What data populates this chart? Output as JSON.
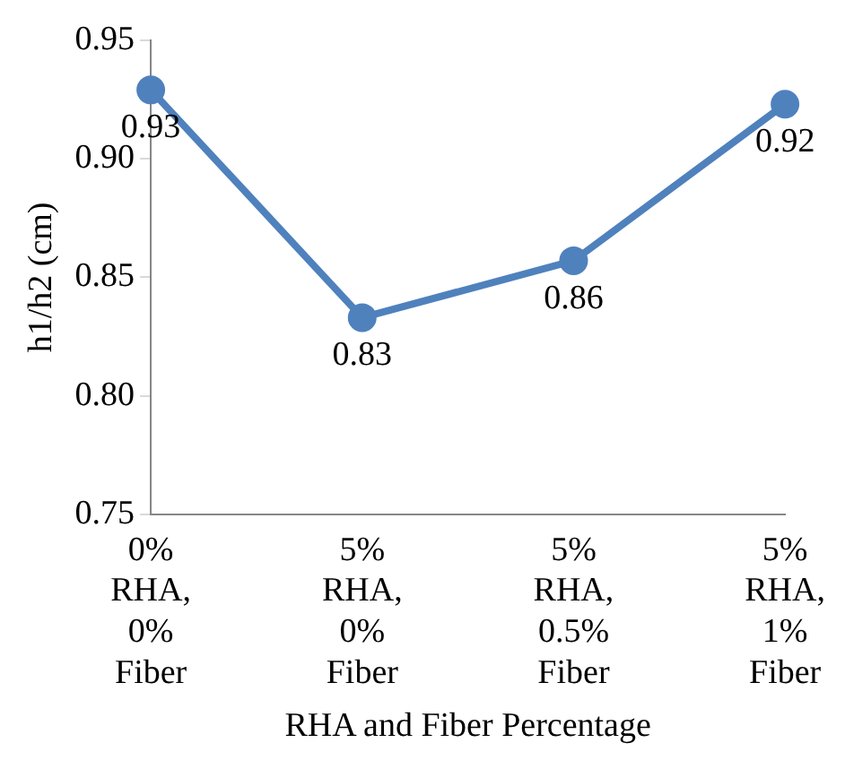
{
  "chart_data": {
    "type": "line",
    "xlabel": "RHA and Fiber Percentage",
    "ylabel": "h1/h2 (cm)",
    "categories": [
      "0% RHA, 0% Fiber",
      "5% RHA, 0% Fiber",
      "5% RHA, 0.5% Fiber",
      "5% RHA, 1% Fiber"
    ],
    "series": [
      {
        "color": "#4f81bd",
        "values": [
          0.929,
          0.833,
          0.857,
          0.923
        ],
        "value_labels": [
          "0.93",
          "0.83",
          "0.86",
          "0.92"
        ]
      }
    ],
    "ylim": [
      0.75,
      0.95
    ],
    "yticks": [
      0.75,
      {
        "value": 0.8,
        "label": "0.80"
      },
      0.85,
      {
        "value": 0.9,
        "label": "0.90"
      },
      0.95
    ],
    "grid": false,
    "legend": false,
    "marker": "circle",
    "line_style": "solid"
  }
}
